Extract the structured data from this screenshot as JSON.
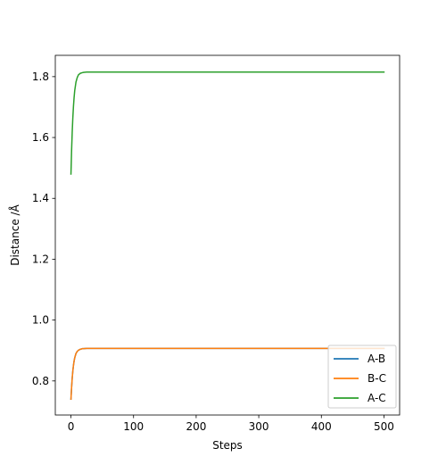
{
  "chart_data": {
    "type": "line",
    "title": "",
    "xlabel": "Steps",
    "ylabel": "Distance /Å",
    "xlim": [
      -25,
      525
    ],
    "ylim": [
      0.688,
      1.87
    ],
    "xticks": [
      0,
      100,
      200,
      300,
      400,
      500
    ],
    "yticks": [
      0.8,
      1.0,
      1.2,
      1.4,
      1.6,
      1.8
    ],
    "grid": false,
    "legend_position": "lower-right",
    "series": [
      {
        "name": "A-B",
        "color": "#1f77b4",
        "x": [
          0,
          1,
          2,
          3,
          4,
          5,
          6,
          8,
          10,
          12,
          15,
          18,
          20,
          25,
          30,
          40,
          50,
          100,
          200,
          300,
          400,
          500
        ],
        "y": [
          0.74,
          0.778,
          0.809,
          0.833,
          0.851,
          0.865,
          0.876,
          0.89,
          0.897,
          0.901,
          0.904,
          0.906,
          0.906,
          0.907,
          0.907,
          0.907,
          0.907,
          0.907,
          0.907,
          0.907,
          0.907,
          0.907
        ]
      },
      {
        "name": "B-C",
        "color": "#ff7f0e",
        "x": [
          0,
          1,
          2,
          3,
          4,
          5,
          6,
          8,
          10,
          12,
          15,
          18,
          20,
          25,
          30,
          40,
          50,
          100,
          200,
          300,
          400,
          500
        ],
        "y": [
          0.74,
          0.778,
          0.809,
          0.833,
          0.851,
          0.865,
          0.876,
          0.89,
          0.897,
          0.901,
          0.904,
          0.906,
          0.906,
          0.907,
          0.907,
          0.907,
          0.907,
          0.907,
          0.907,
          0.907,
          0.907,
          0.907
        ]
      },
      {
        "name": "A-C",
        "color": "#2ca02c",
        "x": [
          0,
          1,
          2,
          3,
          4,
          5,
          6,
          8,
          10,
          12,
          15,
          18,
          20,
          25,
          30,
          40,
          50,
          100,
          200,
          300,
          400,
          500
        ],
        "y": [
          1.48,
          1.556,
          1.617,
          1.665,
          1.702,
          1.731,
          1.754,
          1.782,
          1.797,
          1.806,
          1.811,
          1.813,
          1.814,
          1.815,
          1.815,
          1.815,
          1.815,
          1.815,
          1.815,
          1.815,
          1.815,
          1.815
        ]
      }
    ]
  }
}
